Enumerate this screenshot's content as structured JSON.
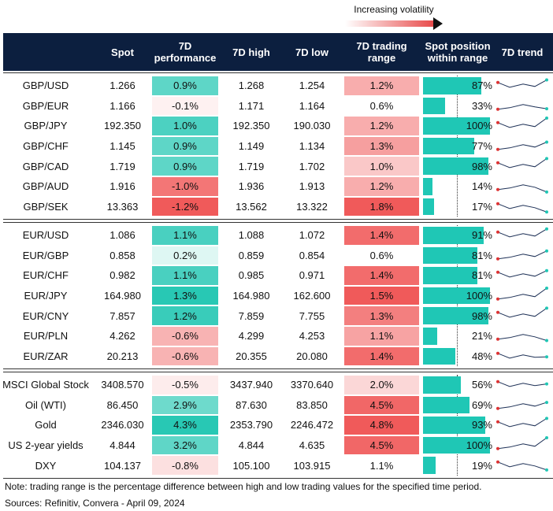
{
  "legend": {
    "label": "Increasing volatility"
  },
  "header": {
    "spot": "Spot",
    "performance": "7D performance",
    "high": "7D high",
    "low": "7D low",
    "range": "7D trading range",
    "position": "Spot position within range",
    "trend": "7D trend"
  },
  "groups": [
    [
      [
        "GBP/USD",
        "1.266",
        "0.9%",
        "1.268",
        "1.254",
        "1.2%",
        "87%"
      ],
      [
        "GBP/EUR",
        "1.166",
        "-0.1%",
        "1.171",
        "1.164",
        "0.6%",
        "33%"
      ],
      [
        "GBP/JPY",
        "192.350",
        "1.0%",
        "192.350",
        "190.030",
        "1.2%",
        "100%"
      ],
      [
        "GBP/CHF",
        "1.145",
        "0.9%",
        "1.149",
        "1.134",
        "1.3%",
        "77%"
      ],
      [
        "GBP/CAD",
        "1.719",
        "0.9%",
        "1.719",
        "1.702",
        "1.0%",
        "98%"
      ],
      [
        "GBP/AUD",
        "1.916",
        "-1.0%",
        "1.936",
        "1.913",
        "1.2%",
        "14%"
      ],
      [
        "GBP/SEK",
        "13.363",
        "-1.2%",
        "13.562",
        "13.322",
        "1.8%",
        "17%"
      ]
    ],
    [
      [
        "EUR/USD",
        "1.086",
        "1.1%",
        "1.088",
        "1.072",
        "1.4%",
        "91%"
      ],
      [
        "EUR/GBP",
        "0.858",
        "0.2%",
        "0.859",
        "0.854",
        "0.6%",
        "81%"
      ],
      [
        "EUR/CHF",
        "0.982",
        "1.1%",
        "0.985",
        "0.971",
        "1.4%",
        "81%"
      ],
      [
        "EUR/JPY",
        "164.980",
        "1.3%",
        "164.980",
        "162.600",
        "1.5%",
        "100%"
      ],
      [
        "EUR/CNY",
        "7.857",
        "1.2%",
        "7.859",
        "7.755",
        "1.3%",
        "98%"
      ],
      [
        "EUR/PLN",
        "4.262",
        "-0.6%",
        "4.299",
        "4.253",
        "1.1%",
        "21%"
      ],
      [
        "EUR/ZAR",
        "20.213",
        "-0.6%",
        "20.355",
        "20.080",
        "1.4%",
        "48%"
      ]
    ],
    [
      [
        "MSCI Global Stock",
        "3408.570",
        "-0.5%",
        "3437.940",
        "3370.640",
        "2.0%",
        "56%"
      ],
      [
        "Oil (WTI)",
        "86.450",
        "2.9%",
        "87.630",
        "83.850",
        "4.5%",
        "69%"
      ],
      [
        "Gold",
        "2346.030",
        "4.3%",
        "2353.790",
        "2246.472",
        "4.8%",
        "93%"
      ],
      [
        "US 2-year yields",
        "4.844",
        "3.2%",
        "4.844",
        "4.635",
        "4.5%",
        "100%"
      ],
      [
        "DXY",
        "104.137",
        "-0.8%",
        "105.100",
        "103.915",
        "1.1%",
        "19%"
      ]
    ]
  ],
  "note": "Note: trading range is the percentage difference between high and low trading values for the specified time period.",
  "sources": "Sources: Refinitiv, Convera - April 09, 2024"
}
